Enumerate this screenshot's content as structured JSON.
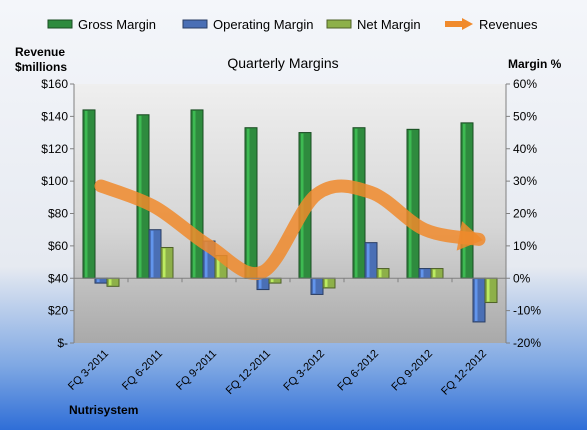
{
  "chart_data": {
    "type": "bar",
    "title": "Quarterly Margins",
    "company": "Nutrisystem",
    "left_axis_label": [
      "Revenue",
      "$millions"
    ],
    "right_axis_label": "Margin %",
    "categories": [
      "FQ 3-2011",
      "FQ 6-2011",
      "FQ 9-2011",
      "FQ 12-2011",
      "FQ 3-2012",
      "FQ 6-2012",
      "FQ 9-2012",
      "FQ 12-2012"
    ],
    "left_ylim": [
      0,
      160
    ],
    "left_ticks": [
      "$-",
      "$20",
      "$40",
      "$60",
      "$80",
      "$100",
      "$120",
      "$140",
      "$160"
    ],
    "right_ylim": [
      -20,
      60
    ],
    "right_ticks": [
      "-20%",
      "-10%",
      "0%",
      "10%",
      "20%",
      "30%",
      "40%",
      "50%",
      "60%"
    ],
    "series": [
      {
        "name": "Gross Margin",
        "axis": "right",
        "color": "#2E8B3E",
        "values": [
          52,
          50.5,
          52,
          46.5,
          45,
          46.5,
          46,
          48
        ]
      },
      {
        "name": "Operating Margin",
        "axis": "right",
        "color": "#4A6FB5",
        "values": [
          -1.5,
          15,
          11.5,
          -3.5,
          -5,
          11,
          3,
          -13.5
        ]
      },
      {
        "name": "Net Margin",
        "axis": "right",
        "color": "#8DB049",
        "values": [
          -2.5,
          9.5,
          7,
          -1.5,
          -3,
          3,
          3,
          -7.5
        ]
      },
      {
        "name": "Revenues",
        "axis": "left",
        "type": "line",
        "color": "#F08A2C",
        "values": [
          97,
          84,
          60,
          44,
          92,
          93,
          70,
          64
        ]
      }
    ],
    "legend_position": "top",
    "grid": false
  }
}
